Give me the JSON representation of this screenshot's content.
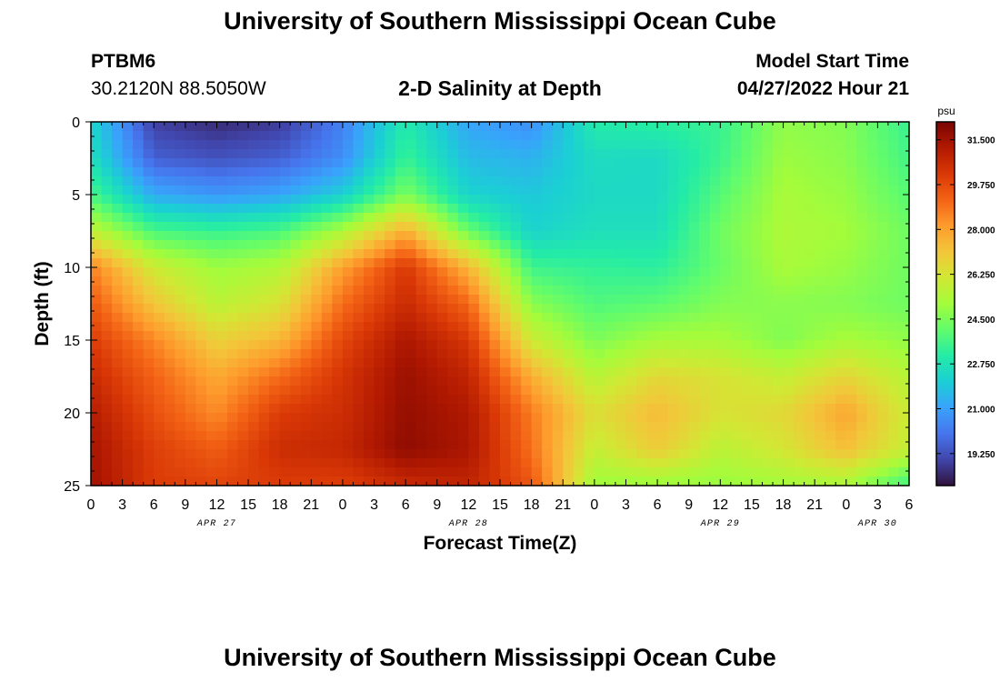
{
  "header": {
    "title": "University of Southern Mississippi Ocean Cube",
    "station_id": "PTBM6",
    "station_coords": "30.2120N  88.5050W",
    "chart_heading": "2-D Salinity at Depth",
    "model_start_label": "Model Start Time",
    "model_start_value": "04/27/2022 Hour 21"
  },
  "footer": {
    "title": "University of Southern Mississippi Ocean Cube"
  },
  "chart_data": {
    "type": "heatmap",
    "title": "2-D Salinity at Depth",
    "xlabel": "Forecast Time(Z)",
    "ylabel": "Depth (ft)",
    "x_tick_labels": [
      "0",
      "3",
      "6",
      "9",
      "12",
      "15",
      "18",
      "21",
      "0",
      "3",
      "6",
      "9",
      "12",
      "15",
      "18",
      "21",
      "0",
      "3",
      "6",
      "9",
      "12",
      "15",
      "18",
      "21",
      "0",
      "3",
      "6"
    ],
    "x_date_labels": [
      {
        "label": "APR 27",
        "hour_index": 4
      },
      {
        "label": "APR 28",
        "hour_index": 12
      },
      {
        "label": "APR 29",
        "hour_index": 20
      },
      {
        "label": "APR 30",
        "hour_index": 25
      }
    ],
    "xlim_hours": [
      0,
      78
    ],
    "ylim_depth_ft": [
      0,
      25
    ],
    "y_ticks": [
      0,
      5,
      10,
      15,
      20,
      25
    ],
    "colorbar": {
      "units": "psu",
      "min": 18.0,
      "max": 32.2,
      "tick_labels": [
        "31.500",
        "29.750",
        "28.000",
        "26.250",
        "24.500",
        "22.750",
        "21.000",
        "19.250"
      ],
      "tick_values": [
        31.5,
        29.75,
        28.0,
        26.25,
        24.5,
        22.75,
        21.0,
        19.25
      ],
      "colors": [
        "#30123b",
        "#4145ab",
        "#4675ed",
        "#39a2fc",
        "#1bcfd4",
        "#24eca6",
        "#61fc6c",
        "#a4fc3b",
        "#d1e834",
        "#f3c63a",
        "#fe9b2d",
        "#f36315",
        "#d93806",
        "#b11901",
        "#7a0402"
      ]
    },
    "depth_levels_ft": [
      0,
      2.5,
      5,
      7.5,
      10,
      12.5,
      15,
      17.5,
      20,
      22.5,
      25
    ],
    "time_hours": [
      0,
      6,
      12,
      18,
      24,
      30,
      36,
      42,
      48,
      54,
      60,
      66,
      72,
      78
    ],
    "salinity_psu": [
      [
        22.3,
        18.9,
        18.5,
        18.8,
        20.3,
        23.0,
        21.1,
        20.6,
        23.0,
        23.2,
        23.4,
        24.8,
        24.6,
        23.4
      ],
      [
        22.6,
        19.6,
        19.3,
        19.6,
        20.6,
        23.4,
        21.6,
        21.4,
        22.5,
        22.4,
        23.5,
        25.0,
        24.7,
        23.6
      ],
      [
        23.7,
        21.2,
        20.8,
        21.1,
        22.1,
        24.5,
        22.2,
        21.9,
        22.4,
        22.4,
        23.9,
        25.2,
        24.9,
        23.9
      ],
      [
        25.7,
        23.7,
        23.4,
        23.7,
        25.3,
        27.7,
        24.2,
        22.2,
        22.6,
        22.6,
        24.3,
        25.3,
        25.1,
        24.3
      ],
      [
        28.6,
        26.0,
        25.0,
        25.4,
        28.0,
        30.2,
        27.5,
        23.5,
        23.3,
        23.2,
        24.2,
        25.2,
        24.9,
        24.3
      ],
      [
        29.4,
        27.1,
        25.6,
        26.3,
        29.0,
        30.6,
        29.1,
        24.7,
        23.8,
        24.0,
        24.6,
        24.7,
        24.6,
        24.3
      ],
      [
        30.1,
        28.5,
        26.8,
        27.5,
        29.8,
        31.3,
        30.2,
        26.0,
        24.5,
        25.2,
        25.2,
        24.6,
        25.2,
        24.8
      ],
      [
        30.6,
        29.2,
        27.8,
        29.0,
        30.3,
        31.6,
        30.8,
        27.7,
        25.5,
        26.6,
        26.3,
        25.8,
        26.7,
        25.5
      ],
      [
        31.1,
        29.6,
        28.4,
        30.1,
        30.5,
        31.7,
        31.2,
        28.7,
        26.4,
        27.4,
        26.3,
        26.6,
        27.9,
        25.9
      ],
      [
        31.4,
        30.0,
        29.3,
        30.5,
        30.7,
        31.8,
        31.3,
        28.9,
        25.8,
        27.0,
        25.6,
        26.2,
        27.3,
        25.8
      ],
      [
        31.5,
        30.1,
        29.9,
        30.1,
        30.0,
        30.6,
        30.8,
        29.5,
        25.0,
        24.9,
        24.9,
        25.1,
        25.2,
        23.5
      ]
    ]
  }
}
